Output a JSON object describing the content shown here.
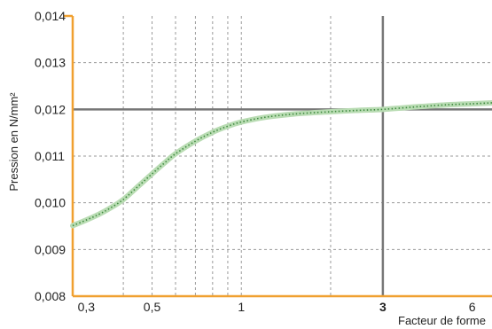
{
  "chart_data": {
    "type": "line",
    "xlabel": "Facteur de forme",
    "ylabel": "Pression en N/mm²",
    "x_scale": "log",
    "xlim": [
      0.27,
      7
    ],
    "ylim": [
      0.008,
      0.014
    ],
    "x_ticks": [
      {
        "value": 0.3,
        "label": "0,3"
      },
      {
        "value": 0.5,
        "label": "0,5"
      },
      {
        "value": 1,
        "label": "1"
      },
      {
        "value": 3,
        "label": "3",
        "bold": true
      },
      {
        "value": 6,
        "label": "6"
      }
    ],
    "x_grid": [
      0.4,
      0.5,
      0.6,
      0.7,
      0.8,
      0.9,
      1,
      2
    ],
    "y_ticks": [
      {
        "value": 0.008,
        "label": "0,008"
      },
      {
        "value": 0.009,
        "label": "0,009"
      },
      {
        "value": 0.01,
        "label": "0,010"
      },
      {
        "value": 0.011,
        "label": "0,011"
      },
      {
        "value": 0.012,
        "label": "0,012"
      },
      {
        "value": 0.013,
        "label": "0,013"
      },
      {
        "value": 0.014,
        "label": "0,014"
      }
    ],
    "reference": {
      "x": 3,
      "y": 0.012
    },
    "series": [
      {
        "x": [
          0.27,
          0.3,
          0.33,
          0.36,
          0.4,
          0.45,
          0.5,
          0.55,
          0.6,
          0.7,
          0.8,
          0.9,
          1.0,
          1.2,
          1.5,
          2.0,
          2.5,
          3.0,
          4.0,
          5.0,
          6.0,
          7.0
        ],
        "y": [
          0.00951,
          0.00963,
          0.00975,
          0.00988,
          0.01007,
          0.01036,
          0.01062,
          0.01085,
          0.01105,
          0.01132,
          0.01151,
          0.01164,
          0.01173,
          0.01183,
          0.0119,
          0.01195,
          0.01198,
          0.012,
          0.01206,
          0.0121,
          0.01212,
          0.01214
        ]
      }
    ],
    "colors": {
      "axis": "#f0a030",
      "grid": "#9a9a9a",
      "reference": "#777777",
      "curve_band": "#b9dcb3",
      "curve_dots": "#3f8a3f"
    },
    "grid": true
  }
}
